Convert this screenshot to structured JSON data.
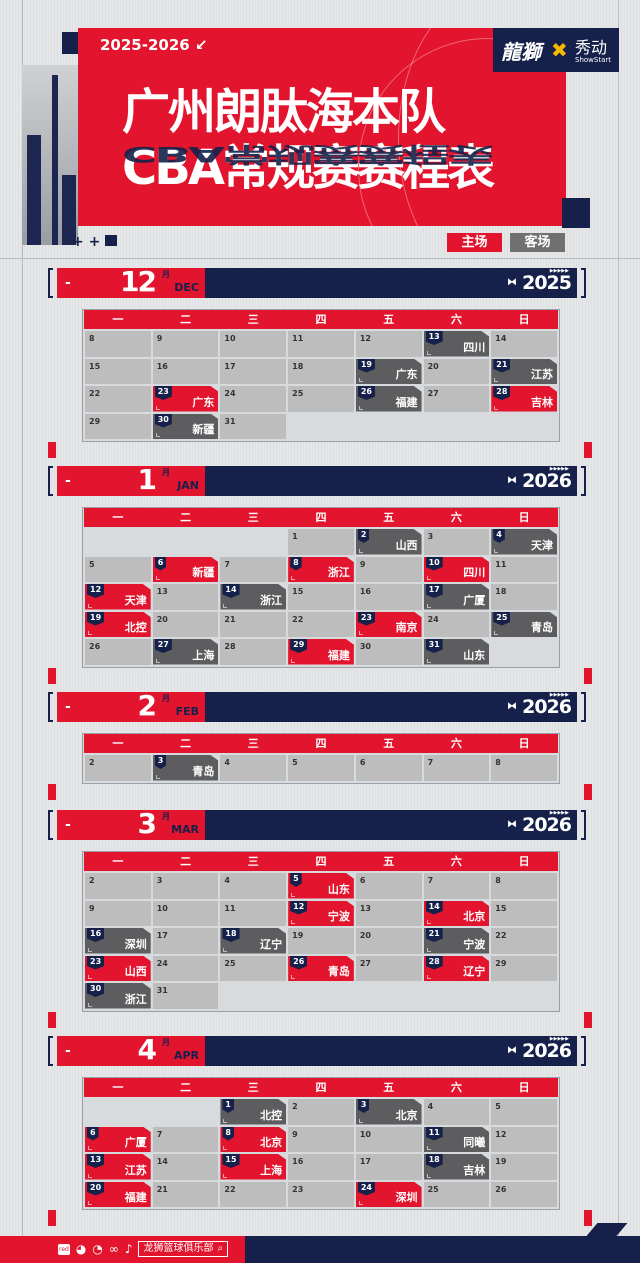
{
  "header": {
    "season": "2025-2026 ↙",
    "title_line1": "广州朗肽海本队",
    "title_line2": "CBA常规赛赛程表",
    "logo_club": "龍獅",
    "logo_partner": "秀动",
    "logo_partner_en": "ShowStart"
  },
  "legend": {
    "home": "主场",
    "away": "客场"
  },
  "colors": {
    "home": "#e3142d",
    "away": "#5d5d5f",
    "navy": "#15214a"
  },
  "weekdays": [
    "一",
    "二",
    "三",
    "四",
    "五",
    "六",
    "日"
  ],
  "months": [
    {
      "num": "12",
      "yue": "月",
      "en": "DEC",
      "year": "2025",
      "weeks": [
        [
          [
            "8"
          ],
          [
            "9"
          ],
          [
            "10"
          ],
          [
            "11"
          ],
          [
            "12"
          ],
          [
            "13",
            "四川",
            "away"
          ],
          [
            "14"
          ]
        ],
        [
          [
            "15"
          ],
          [
            "16"
          ],
          [
            "17"
          ],
          [
            "18"
          ],
          [
            "19",
            "广东",
            "away"
          ],
          [
            "20"
          ],
          [
            "21",
            "江苏",
            "away"
          ]
        ],
        [
          [
            "22"
          ],
          [
            "23",
            "广东",
            "home"
          ],
          [
            "24"
          ],
          [
            "25"
          ],
          [
            "26",
            "福建",
            "away"
          ],
          [
            "27"
          ],
          [
            "28",
            "吉林",
            "home"
          ]
        ],
        [
          [
            "29"
          ],
          [
            "30",
            "新疆",
            "away"
          ],
          [
            "31"
          ],
          null,
          null,
          null,
          null
        ]
      ]
    },
    {
      "num": "1",
      "yue": "月",
      "en": "JAN",
      "year": "2026",
      "weeks": [
        [
          null,
          null,
          null,
          [
            "1"
          ],
          [
            "2",
            "山西",
            "away"
          ],
          [
            "3"
          ],
          [
            "4",
            "天津",
            "away"
          ]
        ],
        [
          [
            "5"
          ],
          [
            "6",
            "新疆",
            "home"
          ],
          [
            "7"
          ],
          [
            "8",
            "浙江",
            "home"
          ],
          [
            "9"
          ],
          [
            "10",
            "四川",
            "home"
          ],
          [
            "11"
          ]
        ],
        [
          [
            "12",
            "天津",
            "home"
          ],
          [
            "13"
          ],
          [
            "14",
            "浙江",
            "away"
          ],
          [
            "15"
          ],
          [
            "16"
          ],
          [
            "17",
            "广厦",
            "away"
          ],
          [
            "18"
          ]
        ],
        [
          [
            "19",
            "北控",
            "home"
          ],
          [
            "20"
          ],
          [
            "21"
          ],
          [
            "22"
          ],
          [
            "23",
            "南京",
            "home"
          ],
          [
            "24"
          ],
          [
            "25",
            "青岛",
            "away"
          ]
        ],
        [
          [
            "26"
          ],
          [
            "27",
            "上海",
            "away"
          ],
          [
            "28"
          ],
          [
            "29",
            "福建",
            "home"
          ],
          [
            "30"
          ],
          [
            "31",
            "山东",
            "away"
          ],
          null
        ]
      ]
    },
    {
      "num": "2",
      "yue": "月",
      "en": "FEB",
      "year": "2026",
      "weeks": [
        [
          [
            "2"
          ],
          [
            "3",
            "青岛",
            "away"
          ],
          [
            "4"
          ],
          [
            "5"
          ],
          [
            "6"
          ],
          [
            "7"
          ],
          [
            "8"
          ]
        ]
      ]
    },
    {
      "num": "3",
      "yue": "月",
      "en": "MAR",
      "year": "2026",
      "weeks": [
        [
          [
            "2"
          ],
          [
            "3"
          ],
          [
            "4"
          ],
          [
            "5",
            "山东",
            "home"
          ],
          [
            "6"
          ],
          [
            "7"
          ],
          [
            "8"
          ]
        ],
        [
          [
            "9"
          ],
          [
            "10"
          ],
          [
            "11"
          ],
          [
            "12",
            "宁波",
            "home"
          ],
          [
            "13"
          ],
          [
            "14",
            "北京",
            "home"
          ],
          [
            "15"
          ]
        ],
        [
          [
            "16",
            "深圳",
            "away"
          ],
          [
            "17"
          ],
          [
            "18",
            "辽宁",
            "away"
          ],
          [
            "19"
          ],
          [
            "20"
          ],
          [
            "21",
            "宁波",
            "away"
          ],
          [
            "22"
          ]
        ],
        [
          [
            "23",
            "山西",
            "home"
          ],
          [
            "24"
          ],
          [
            "25"
          ],
          [
            "26",
            "青岛",
            "home"
          ],
          [
            "27"
          ],
          [
            "28",
            "辽宁",
            "home"
          ],
          [
            "29"
          ]
        ],
        [
          [
            "30",
            "浙江",
            "away"
          ],
          [
            "31"
          ],
          null,
          null,
          null,
          null,
          null
        ]
      ]
    },
    {
      "num": "4",
      "yue": "月",
      "en": "APR",
      "year": "2026",
      "weeks": [
        [
          null,
          null,
          [
            "1",
            "北控",
            "away"
          ],
          [
            "2"
          ],
          [
            "3",
            "北京",
            "away"
          ],
          [
            "4"
          ],
          [
            "5"
          ]
        ],
        [
          [
            "6",
            "广厦",
            "home"
          ],
          [
            "7"
          ],
          [
            "8",
            "北京",
            "home"
          ],
          [
            "9"
          ],
          [
            "10"
          ],
          [
            "11",
            "同曦",
            "away"
          ],
          [
            "12"
          ]
        ],
        [
          [
            "13",
            "江苏",
            "home"
          ],
          [
            "14"
          ],
          [
            "15",
            "上海",
            "home"
          ],
          [
            "16"
          ],
          [
            "17"
          ],
          [
            "18",
            "吉林",
            "away"
          ],
          [
            "19"
          ]
        ],
        [
          [
            "20",
            "福建",
            "home"
          ],
          [
            "21"
          ],
          [
            "22"
          ],
          [
            "23"
          ],
          [
            "24",
            "深圳",
            "home"
          ],
          [
            "25"
          ],
          [
            "26"
          ]
        ]
      ]
    }
  ],
  "footer": {
    "search_text": "龙狮篮球俱乐部",
    "icons": [
      "xiaohongshu-icon",
      "wechat-icon",
      "weibo-icon",
      "video-channel-icon",
      "douyin-icon"
    ]
  }
}
